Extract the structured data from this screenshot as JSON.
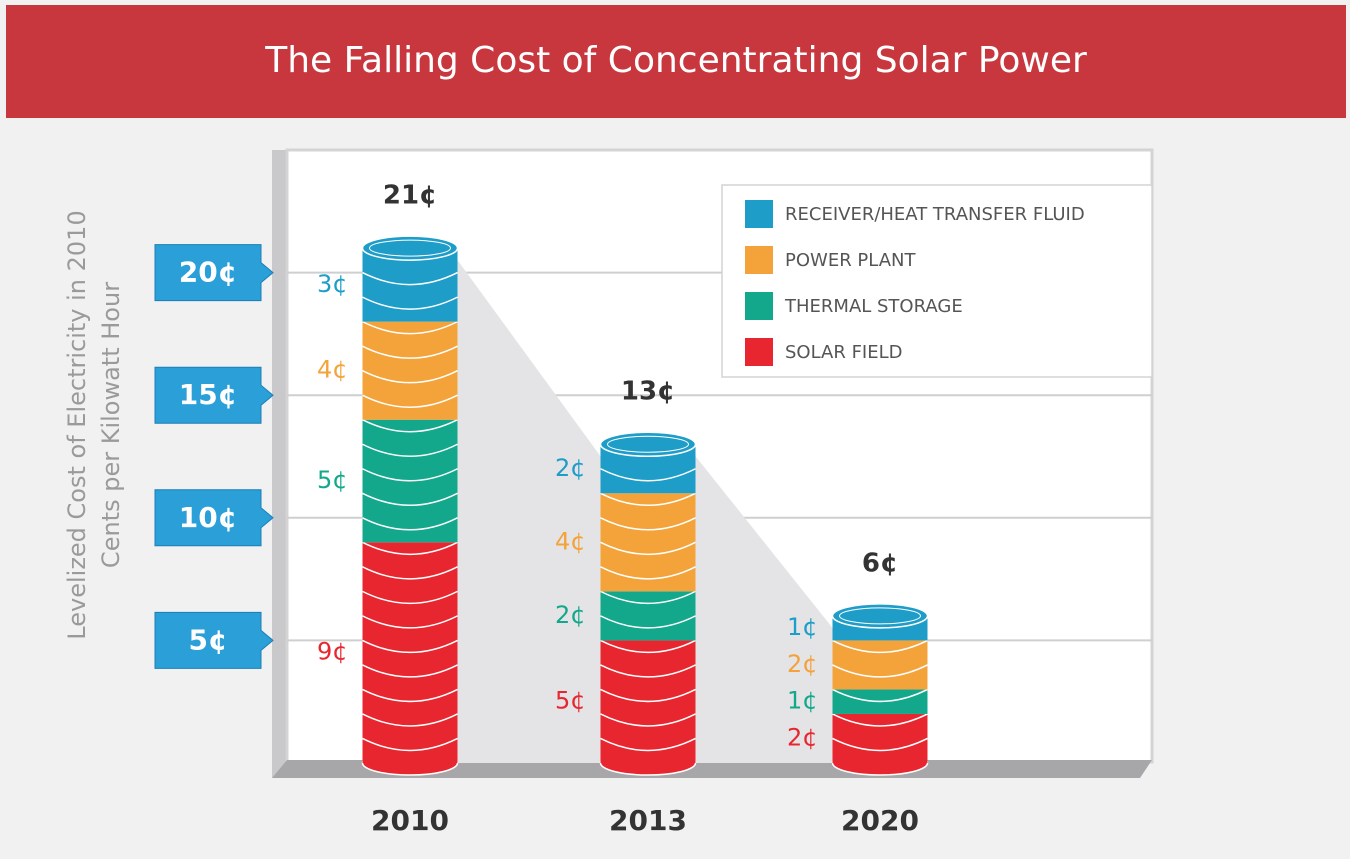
{
  "chart_data": {
    "type": "stacked-bar",
    "title": "The  Falling Cost of Concentrating Solar Power",
    "ylabel": [
      "Levelized Cost of Electricity in 2010",
      "Cents per Kilowatt Hour"
    ],
    "categories": [
      "2010",
      "2013",
      "2020"
    ],
    "series": [
      {
        "name": "SOLAR FIELD",
        "color": "#e8262f",
        "values": [
          9,
          5,
          2
        ],
        "value_labels": [
          "9¢",
          "5¢",
          "2¢"
        ]
      },
      {
        "name": "THERMAL STORAGE",
        "color": "#13a88c",
        "values": [
          5,
          2,
          1
        ],
        "value_labels": [
          "5¢",
          "2¢",
          "1¢"
        ]
      },
      {
        "name": "POWER PLANT",
        "color": "#f3a33a",
        "values": [
          4,
          4,
          2
        ],
        "value_labels": [
          "4¢",
          "4¢",
          "2¢"
        ]
      },
      {
        "name": "RECEIVER/HEAT TRANSFER FLUID",
        "color": "#1e9dc8",
        "values": [
          3,
          2,
          1
        ],
        "value_labels": [
          "3¢",
          "2¢",
          "1¢"
        ]
      }
    ],
    "totals": [
      21,
      13,
      6
    ],
    "total_labels": [
      "21¢",
      "13¢",
      "6¢"
    ],
    "ylim": [
      0,
      25
    ],
    "yticks": [
      {
        "value": 5,
        "label": "5¢"
      },
      {
        "value": 10,
        "label": "10¢"
      },
      {
        "value": 15,
        "label": "15¢"
      },
      {
        "value": 20,
        "label": "20¢"
      }
    ],
    "grid": true,
    "legend": "top-right"
  }
}
